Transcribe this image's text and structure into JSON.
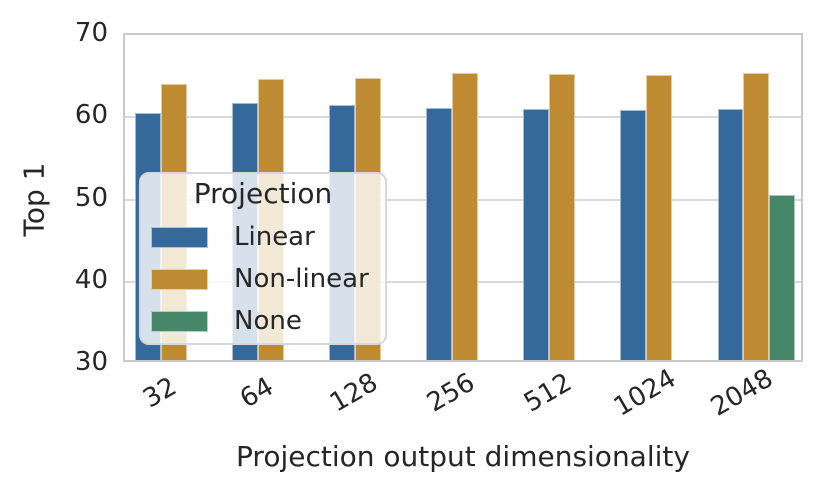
{
  "chart_data": {
    "type": "bar",
    "title": "",
    "xlabel": "Projection output dimensionality",
    "ylabel": "Top 1",
    "categories": [
      "32",
      "64",
      "128",
      "256",
      "512",
      "1024",
      "2048"
    ],
    "series": [
      {
        "name": "Linear",
        "color": "#36699b",
        "values": [
          60.0,
          61.2,
          61.0,
          60.6,
          60.5,
          60.4,
          60.5
        ]
      },
      {
        "name": "Non-linear",
        "color": "#be8a32",
        "values": [
          63.6,
          64.2,
          64.3,
          64.9,
          64.8,
          64.6,
          64.9
        ]
      },
      {
        "name": "None",
        "color": "#458768",
        "values": [
          null,
          null,
          null,
          null,
          null,
          null,
          50.1
        ]
      }
    ],
    "ylim": [
      30,
      70
    ],
    "yticks": [
      30,
      40,
      50,
      60,
      70
    ],
    "grid": true,
    "legend": {
      "title": "Projection",
      "position": "center-left"
    }
  },
  "style": {
    "text_color": "#262626",
    "grid_color": "#d9d9d9",
    "spine_color": "#c9c9c9",
    "background": "#ffffff"
  }
}
